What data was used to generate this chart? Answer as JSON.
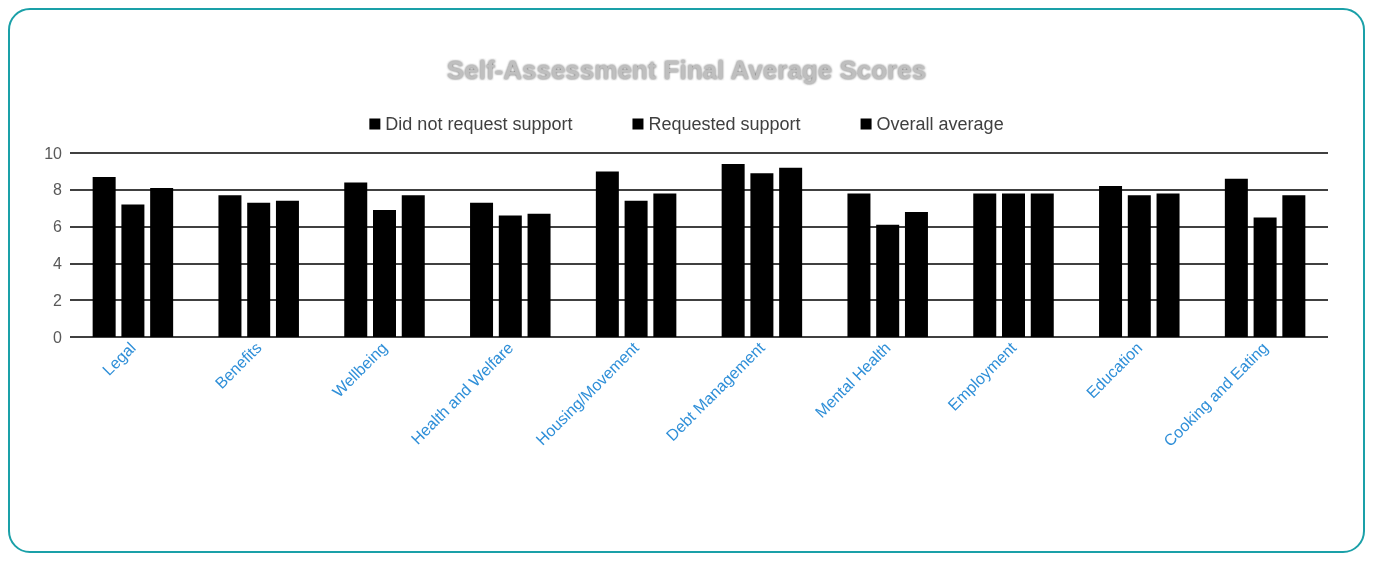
{
  "chart_data": {
    "type": "bar",
    "title": "Self-Assessment Final Average Scores",
    "categories": [
      "Legal",
      "Benefits",
      "Wellbeing",
      "Health and Welfare",
      "Housing/Movement",
      "Debt Management",
      "Mental Health",
      "Employment",
      "Education",
      "Cooking and Eating"
    ],
    "series": [
      {
        "name": "Did not request support",
        "color": "#000000",
        "values": [
          8.7,
          7.7,
          8.4,
          7.3,
          9.0,
          9.4,
          7.8,
          7.8,
          8.2,
          8.6
        ]
      },
      {
        "name": "Requested support",
        "color": "#000000",
        "values": [
          7.2,
          7.3,
          6.9,
          6.6,
          7.4,
          8.9,
          6.1,
          7.8,
          7.7,
          6.5
        ]
      },
      {
        "name": "Overall average",
        "color": "#000000",
        "values": [
          8.1,
          7.4,
          7.7,
          6.7,
          7.8,
          9.2,
          6.8,
          7.8,
          7.8,
          7.7
        ]
      }
    ],
    "ylim": [
      0,
      10
    ],
    "yticks": [
      0,
      2,
      4,
      6,
      8,
      10
    ],
    "grid": "y",
    "legend": "top"
  }
}
